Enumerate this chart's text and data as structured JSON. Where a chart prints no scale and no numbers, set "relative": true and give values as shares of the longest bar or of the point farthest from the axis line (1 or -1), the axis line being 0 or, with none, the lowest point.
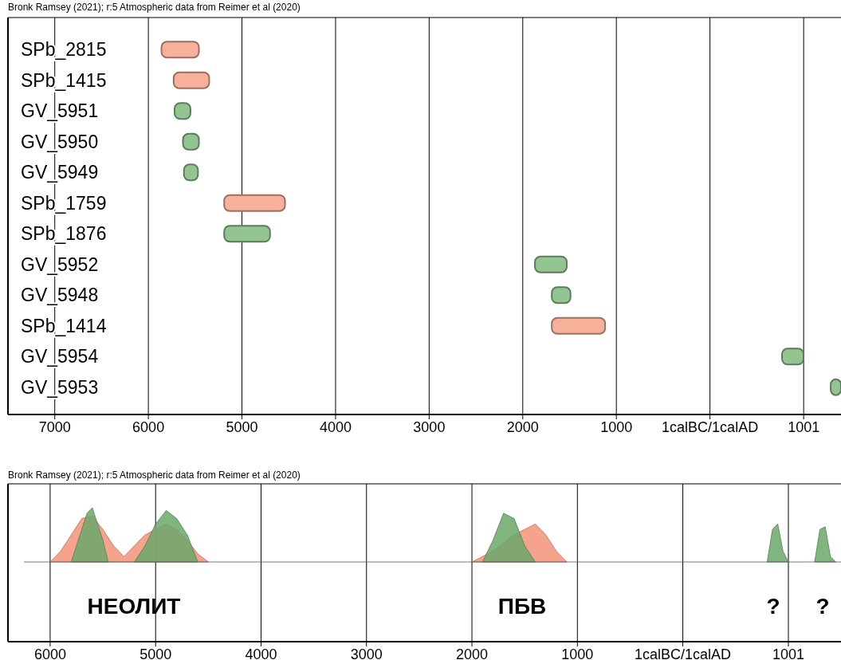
{
  "chart_data": [
    {
      "type": "bar",
      "orientation": "horizontal",
      "title": "Bronk Ramsey (2021); r:5 Atmospheric data from Reimer et al (2020)",
      "categories": [
        "SPb_2815",
        "SPb_1415",
        "GV_5951",
        "GV_5950",
        "GV_5949",
        "SPb_1759",
        "SPb_1876",
        "GV_5952",
        "GV_5948",
        "SPb_1414",
        "GV_5954",
        "GV_5953"
      ],
      "base": [
        -5860,
        -5730,
        -5720,
        -5630,
        -5620,
        -5190,
        -5190,
        -1870,
        -1690,
        -1690,
        770,
        1290
      ],
      "values": [
        400,
        380,
        170,
        170,
        150,
        650,
        490,
        340,
        200,
        570,
        230,
        110
      ],
      "colors": [
        "#f7b09a",
        "#f7b09a",
        "#93c593",
        "#93c593",
        "#93c593",
        "#f7b09a",
        "#93c593",
        "#93c593",
        "#93c593",
        "#f7b09a",
        "#93c593",
        "#93c593"
      ],
      "xlim": [
        -7500,
        1400
      ],
      "xticks": [
        {
          "value": -7000,
          "label": "7000"
        },
        {
          "value": -6000,
          "label": "6000"
        },
        {
          "value": -5000,
          "label": "5000"
        },
        {
          "value": -4000,
          "label": "4000"
        },
        {
          "value": -3000,
          "label": "3000"
        },
        {
          "value": -2000,
          "label": "2000"
        },
        {
          "value": -1000,
          "label": "1000"
        },
        {
          "value": 0,
          "label": "1calBC/1calAD"
        },
        {
          "value": 1001,
          "label": "1001"
        }
      ],
      "grid": "x"
    },
    {
      "type": "area",
      "relative": true,
      "title": "Bronk Ramsey (2021); r:5 Atmospheric data from Reimer et al (2020)",
      "series": [
        {
          "color": "#f4937a",
          "x": [
            -6000,
            -5900,
            -5800,
            -5700,
            -5600,
            -5500,
            -5400,
            -5300,
            -5200,
            -5100,
            -5000,
            -4900,
            -4800,
            -4700,
            -4600,
            -4500
          ],
          "values": [
            0,
            0.2,
            0.5,
            0.8,
            0.85,
            0.6,
            0.3,
            0.1,
            0.3,
            0.5,
            0.6,
            0.7,
            0.6,
            0.4,
            0.15,
            0
          ]
        },
        {
          "color": "#f4937a",
          "x": [
            -2000,
            -1800,
            -1600,
            -1500,
            -1400,
            -1300,
            -1200,
            -1100
          ],
          "values": [
            0,
            0.2,
            0.5,
            0.6,
            0.7,
            0.5,
            0.2,
            0
          ]
        },
        {
          "color": "#6aa86a",
          "x": [
            -5800,
            -5700,
            -5650,
            -5600,
            -5550,
            -5500,
            -5450
          ],
          "values": [
            0,
            0.6,
            0.9,
            1,
            0.7,
            0.4,
            0
          ]
        },
        {
          "color": "#6aa86a",
          "x": [
            -5200,
            -5100,
            -5000,
            -4900,
            -4800,
            -4700,
            -4600
          ],
          "values": [
            0,
            0.3,
            0.7,
            0.95,
            0.8,
            0.5,
            0
          ]
        },
        {
          "color": "#6aa86a",
          "x": [
            -1900,
            -1800,
            -1700,
            -1600,
            -1500,
            -1400
          ],
          "values": [
            0,
            0.4,
            0.9,
            0.8,
            0.3,
            0
          ]
        },
        {
          "color": "#6aa86a",
          "x": [
            800,
            850,
            900,
            950,
            1000
          ],
          "values": [
            0,
            0.6,
            0.7,
            0.2,
            0
          ]
        },
        {
          "color": "#6aa86a",
          "x": [
            1250,
            1300,
            1350,
            1400,
            1450
          ],
          "values": [
            0,
            0.6,
            0.65,
            0.1,
            0
          ]
        }
      ],
      "xlim": [
        -6400,
        1500
      ],
      "xticks": [
        {
          "value": -6000,
          "label": "6000"
        },
        {
          "value": -5000,
          "label": "5000"
        },
        {
          "value": -4000,
          "label": "4000"
        },
        {
          "value": -3000,
          "label": "3000"
        },
        {
          "value": -2000,
          "label": "2000"
        },
        {
          "value": -1000,
          "label": "1000"
        },
        {
          "value": 0,
          "label": "1calBC/1calAD"
        },
        {
          "value": 1001,
          "label": "1001"
        }
      ],
      "grid": "x",
      "annotations": [
        "НЕОЛИТ",
        "ПБВ",
        "?",
        "?"
      ]
    }
  ]
}
